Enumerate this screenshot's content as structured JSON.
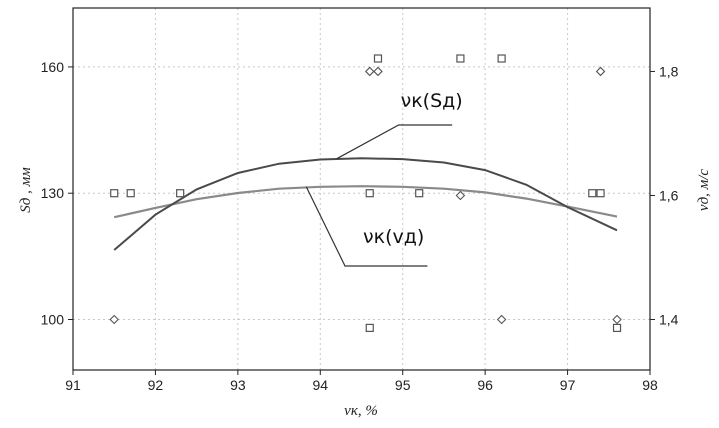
{
  "chart_data": {
    "type": "scatter",
    "xlabel": "νк, %",
    "ylabel_left": "Sд , мм",
    "ylabel_right": "vд, м/с",
    "x_ticks": [
      "91",
      "92",
      "93",
      "94",
      "95",
      "96",
      "97",
      "98"
    ],
    "y_left_ticks": [
      "100",
      "130",
      "160"
    ],
    "y_right_ticks": [
      "1,4",
      "1,6",
      "1,8"
    ],
    "xlim": [
      91,
      98
    ],
    "ylim_left": [
      88,
      174
    ],
    "ylim_right": [
      1.3186,
      1.9023
    ],
    "grid": true,
    "series": [
      {
        "name": "νк(Sд)",
        "marker": "square",
        "axis": "left",
        "points": [
          [
            91.5,
            130
          ],
          [
            91.7,
            130
          ],
          [
            92.3,
            130
          ],
          [
            94.6,
            130
          ],
          [
            95.2,
            130
          ],
          [
            97.3,
            130
          ],
          [
            97.4,
            130
          ],
          [
            94.6,
            98
          ],
          [
            97.6,
            98
          ],
          [
            94.7,
            162
          ],
          [
            95.7,
            162
          ],
          [
            96.2,
            162
          ]
        ],
        "curve": [
          [
            91.5,
            116.5
          ],
          [
            92.0,
            124.9
          ],
          [
            92.5,
            130.9
          ],
          [
            93.0,
            134.8
          ],
          [
            93.5,
            137.0
          ],
          [
            94.0,
            138.0
          ],
          [
            94.5,
            138.3
          ],
          [
            95.0,
            138.1
          ],
          [
            95.5,
            137.3
          ],
          [
            96.0,
            135.5
          ],
          [
            96.5,
            132.0
          ],
          [
            97.0,
            126.7
          ],
          [
            97.6,
            121.2
          ]
        ]
      },
      {
        "name": "νк(vд)",
        "marker": "diamond",
        "axis": "right",
        "points": [
          [
            91.5,
            1.4
          ],
          [
            94.6,
            1.8
          ],
          [
            94.7,
            1.8
          ],
          [
            95.7,
            1.6
          ],
          [
            96.2,
            1.4
          ],
          [
            97.4,
            1.8
          ],
          [
            97.6,
            1.4
          ]
        ],
        "curve": [
          [
            91.5,
            1.565
          ],
          [
            92.0,
            1.58
          ],
          [
            92.5,
            1.594
          ],
          [
            93.0,
            1.604
          ],
          [
            93.5,
            1.611
          ],
          [
            94.0,
            1.614
          ],
          [
            94.5,
            1.615
          ],
          [
            95.0,
            1.614
          ],
          [
            95.5,
            1.611
          ],
          [
            96.0,
            1.605
          ],
          [
            96.5,
            1.595
          ],
          [
            97.0,
            1.582
          ],
          [
            97.6,
            1.566
          ]
        ]
      }
    ],
    "annotations": [
      {
        "text": "νк(Sд)",
        "series": "νк(Sд)"
      },
      {
        "text": "νк(vд)",
        "series": "νк(vд)"
      }
    ],
    "colors": {
      "curve_s": "#4a4a4a",
      "curve_v": "#8a8a8a",
      "grid": "#c8c8c8",
      "frame": "#222222"
    }
  }
}
